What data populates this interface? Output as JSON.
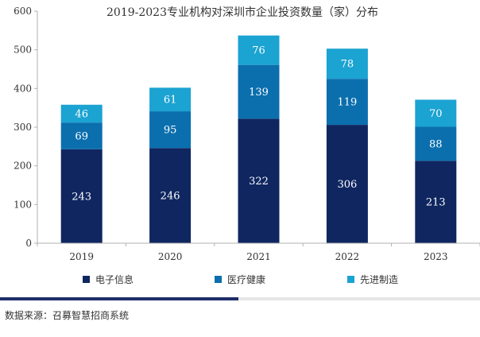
{
  "chart_data": {
    "type": "bar",
    "stacked": true,
    "title": "2019-2023专业机构对深圳市企业投资数量（家）分布",
    "xlabel": "",
    "ylabel": "",
    "categories": [
      "2019",
      "2020",
      "2021",
      "2022",
      "2023"
    ],
    "ylim": [
      0,
      600
    ],
    "yticks": [
      0,
      100,
      200,
      300,
      400,
      500,
      600
    ],
    "grid": false,
    "legend_position": "bottom",
    "series": [
      {
        "name": "电子信息",
        "color": "#0f2660",
        "values": [
          243,
          246,
          322,
          306,
          213
        ]
      },
      {
        "name": "医疗健康",
        "color": "#0b6fae",
        "values": [
          69,
          95,
          139,
          119,
          88
        ]
      },
      {
        "name": "先进制造",
        "color": "#1ba3d1",
        "values": [
          46,
          61,
          76,
          78,
          70
        ]
      }
    ]
  },
  "footer": {
    "source": "数据来源：召募智慧招商系统"
  }
}
